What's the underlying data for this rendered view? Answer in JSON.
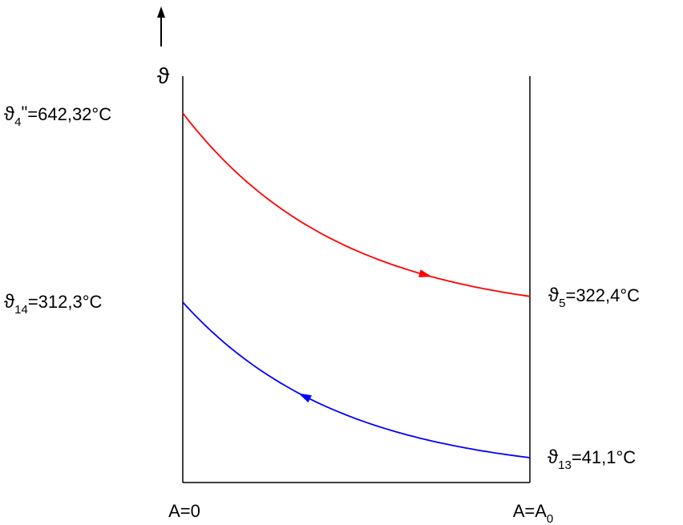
{
  "chart_data": {
    "type": "line",
    "ylabel": "ϑ",
    "x_tick_labels": [
      {
        "base": "A=0",
        "sub": ""
      },
      {
        "base": "A=A",
        "sub": "0"
      }
    ],
    "x": [
      0,
      1
    ],
    "series": [
      {
        "color": "#ff0000",
        "values": [
          642.32,
          322.4
        ],
        "direction": "forward",
        "start_label": {
          "sym": "ϑ",
          "sub": "4",
          "sup": "\"",
          "text": "=642,32°C"
        },
        "end_label": {
          "sym": "ϑ",
          "sub": "5",
          "sup": "",
          "text": "=322,4°C"
        }
      },
      {
        "color": "#0000ff",
        "values": [
          312.3,
          41.1
        ],
        "direction": "reverse",
        "start_label": {
          "sym": "ϑ",
          "sub": "14",
          "sup": "",
          "text": "=312,3°C"
        },
        "end_label": {
          "sym": "ϑ",
          "sub": "13",
          "sup": "",
          "text": "=41,1°C"
        }
      }
    ],
    "ylim": [
      0,
      700
    ],
    "grid": false,
    "legend": "none"
  }
}
